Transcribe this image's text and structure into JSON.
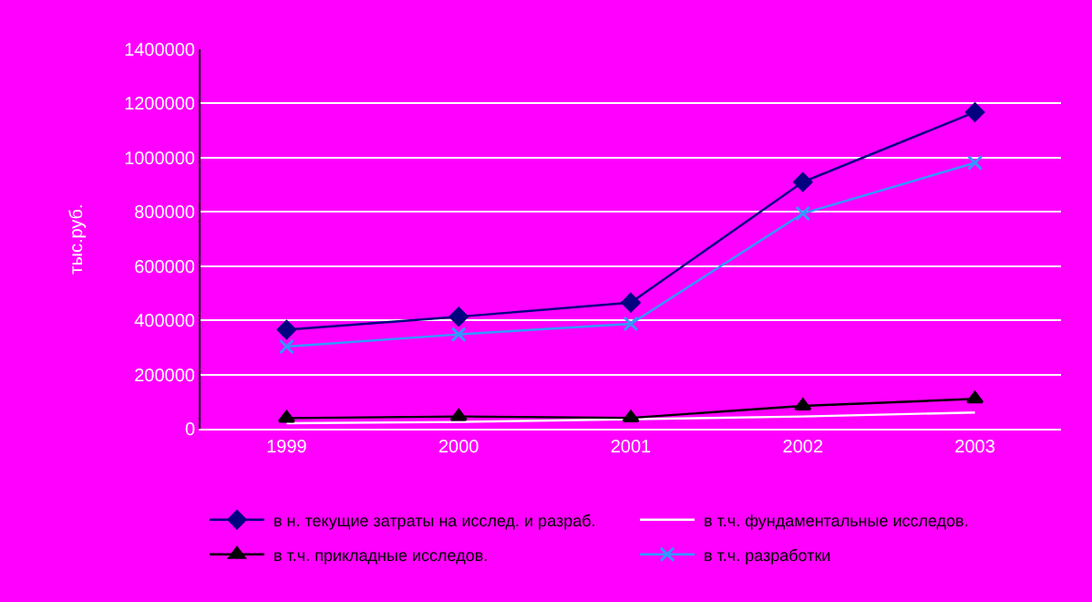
{
  "chart_data": {
    "type": "line",
    "ylabel": "тыс.руб.",
    "categories": [
      "1999",
      "2000",
      "2001",
      "2002",
      "2003"
    ],
    "series": [
      {
        "name": "в н. текущие затраты на исслед. и разраб.",
        "color": "#000080",
        "marker": "diamond",
        "values": [
          365000,
          413000,
          465000,
          910000,
          1168000
        ]
      },
      {
        "name": "в т.ч. фундаментальные исследов.",
        "color": "#ffffff",
        "marker": "none",
        "values": [
          20000,
          25000,
          null,
          45000,
          60000
        ]
      },
      {
        "name": "в т.ч. прикладные исследов.",
        "color": "#000000",
        "marker": "triangle",
        "values": [
          39000,
          45000,
          40000,
          84000,
          110000
        ]
      },
      {
        "name": "в т.ч. разработки",
        "color": "#3399ff",
        "marker": "cross",
        "values": [
          303000,
          348000,
          387000,
          794000,
          981000
        ]
      }
    ],
    "ylim": [
      0,
      1400000
    ],
    "yticks": [
      0,
      200000,
      400000,
      600000,
      800000,
      1000000,
      1200000,
      1400000
    ],
    "grid": "y",
    "legend": "bottom"
  }
}
